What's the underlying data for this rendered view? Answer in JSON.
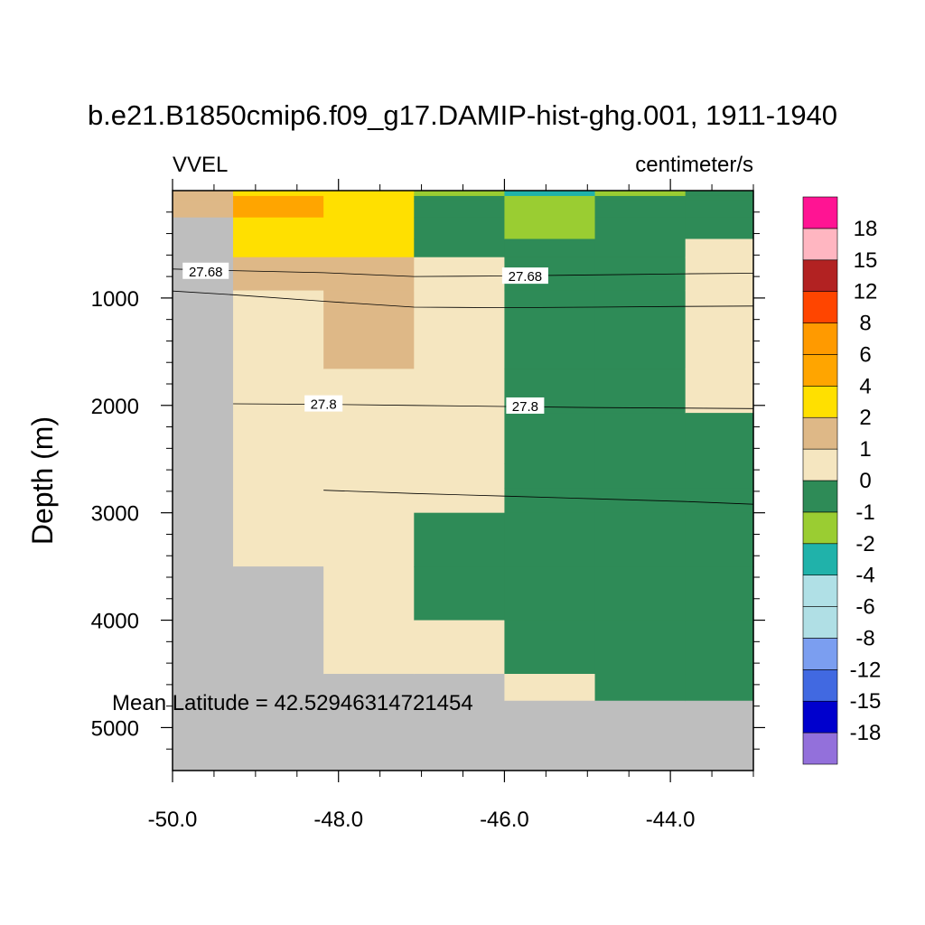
{
  "chart_data": {
    "type": "heatmap",
    "title": "b.e21.B1850cmip6.f09_g17.DAMIP-hist-ghg.001, 1911-1940",
    "variable": "VVEL",
    "units": "centimeter/s",
    "xlabel": "",
    "ylabel": "Depth (m)",
    "annotation": "Mean Latitude = 42.52946314721454",
    "xlim": [
      -50.0,
      -43.0
    ],
    "ylim": [
      0,
      5400
    ],
    "y_inverted": true,
    "x_ticks": [
      {
        "value": -50.0,
        "label": "-50.0"
      },
      {
        "value": -48.0,
        "label": "-48.0"
      },
      {
        "value": -46.0,
        "label": "-46.0"
      },
      {
        "value": -44.0,
        "label": "-44.0"
      }
    ],
    "y_ticks": [
      {
        "value": 1000,
        "label": "1000"
      },
      {
        "value": 2000,
        "label": "2000"
      },
      {
        "value": 3000,
        "label": "3000"
      },
      {
        "value": 4000,
        "label": "4000"
      },
      {
        "value": 5000,
        "label": "5000"
      }
    ],
    "x_edges": [
      -50.0,
      -49.27,
      -48.18,
      -47.09,
      -46.0,
      -44.91,
      -43.82,
      -43.0
    ],
    "depth_edges": [
      0,
      50,
      100,
      250,
      450,
      620,
      930,
      1660,
      2070,
      2540,
      2770,
      3000,
      3500,
      4000,
      4500,
      4750,
      5400
    ],
    "cell_classes": [
      [
        "tan",
        "tan",
        "tan",
        "land",
        "land",
        "land",
        "land",
        "land",
        "land",
        "land",
        "land",
        "land",
        "land",
        "land",
        "land",
        "land"
      ],
      [
        "gold",
        "orange",
        "orange",
        "gold",
        "gold",
        "tan",
        "wheat",
        "wheat",
        "wheat",
        "wheat",
        "wheat",
        "wheat",
        "land",
        "land",
        "land",
        "land"
      ],
      [
        "gold",
        "gold",
        "gold",
        "gold",
        "gold",
        "tan",
        "tan",
        "wheat",
        "wheat",
        "wheat",
        "wheat",
        "wheat",
        "wheat",
        "wheat",
        "land",
        "land"
      ],
      [
        "yg",
        "sg",
        "sg",
        "sg",
        "sg",
        "wheat",
        "wheat",
        "wheat",
        "wheat",
        "wheat",
        "wheat",
        "sg",
        "sg",
        "wheat",
        "land",
        "land"
      ],
      [
        "lsg",
        "yg",
        "yg",
        "yg",
        "sg",
        "sg",
        "sg",
        "sg",
        "sg",
        "sg",
        "sg",
        "sg",
        "sg",
        "sg",
        "wheat",
        "land"
      ],
      [
        "yg",
        "sg",
        "sg",
        "sg",
        "sg",
        "sg",
        "sg",
        "sg",
        "sg",
        "sg",
        "sg",
        "sg",
        "sg",
        "sg",
        "sg",
        "land"
      ],
      [
        "sg",
        "sg",
        "sg",
        "sg",
        "wheat",
        "wheat",
        "wheat",
        "wheat",
        "sg",
        "sg",
        "sg",
        "sg",
        "sg",
        "sg",
        "sg",
        "land"
      ]
    ],
    "contours": [
      {
        "label": "27.68",
        "points": [
          [
            -50.0,
            730
          ],
          [
            -49.27,
            745
          ],
          [
            -48.18,
            765
          ],
          [
            -47.09,
            800
          ],
          [
            -46.0,
            795
          ],
          [
            -44.91,
            785
          ],
          [
            -43.82,
            775
          ],
          [
            -43.0,
            770
          ]
        ],
        "label_at": [
          [
            -49.6,
            755
          ],
          [
            -45.75,
            800
          ]
        ]
      },
      {
        "label": "",
        "points": [
          [
            -50.0,
            935
          ],
          [
            -49.27,
            970
          ],
          [
            -48.18,
            1030
          ],
          [
            -47.09,
            1085
          ],
          [
            -46.0,
            1090
          ],
          [
            -44.91,
            1085
          ],
          [
            -43.82,
            1078
          ],
          [
            -43.0,
            1075
          ]
        ],
        "label_at": []
      },
      {
        "label": "27.8",
        "points": [
          [
            -49.27,
            1985
          ],
          [
            -48.18,
            1990
          ],
          [
            -47.09,
            2000
          ],
          [
            -46.0,
            2010
          ],
          [
            -44.91,
            2020
          ],
          [
            -43.82,
            2025
          ],
          [
            -43.0,
            2030
          ]
        ],
        "label_at": [
          [
            -48.18,
            1990
          ],
          [
            -45.75,
            2010
          ]
        ]
      },
      {
        "label": "",
        "points": [
          [
            -48.18,
            2790
          ],
          [
            -47.09,
            2820
          ],
          [
            -46.0,
            2845
          ],
          [
            -44.91,
            2870
          ],
          [
            -43.82,
            2895
          ],
          [
            -43.0,
            2920
          ]
        ],
        "label_at": []
      }
    ],
    "legend": {
      "placement": "right",
      "colors": [
        "#9370DB",
        "#0000CD",
        "#4169E1",
        "#7B9EF0",
        "#B0DFE5",
        "#B0E0E6",
        "#20B2AA",
        "#9ACD32",
        "#2E8B57",
        "#F5E6C0",
        "#DEB887",
        "#FFE000",
        "#FFA500",
        "#FF9A00",
        "#FF4500",
        "#B22222",
        "#FFB6C1",
        "#FF1493"
      ],
      "labels": [
        "-18",
        "-15",
        "-12",
        "-8",
        "-6",
        "-4",
        "-2",
        "-1",
        "0",
        "1",
        "2",
        "4",
        "6",
        "8",
        "12",
        "15",
        "18"
      ]
    },
    "class_colors": {
      "land": "#BEBEBE",
      "wheat": "#F5E6C0",
      "tan": "#DEB887",
      "gold": "#FFE000",
      "orange": "#FFA500",
      "sg": "#2E8B57",
      "yg": "#9ACD32",
      "lsg": "#20B2AA"
    }
  }
}
